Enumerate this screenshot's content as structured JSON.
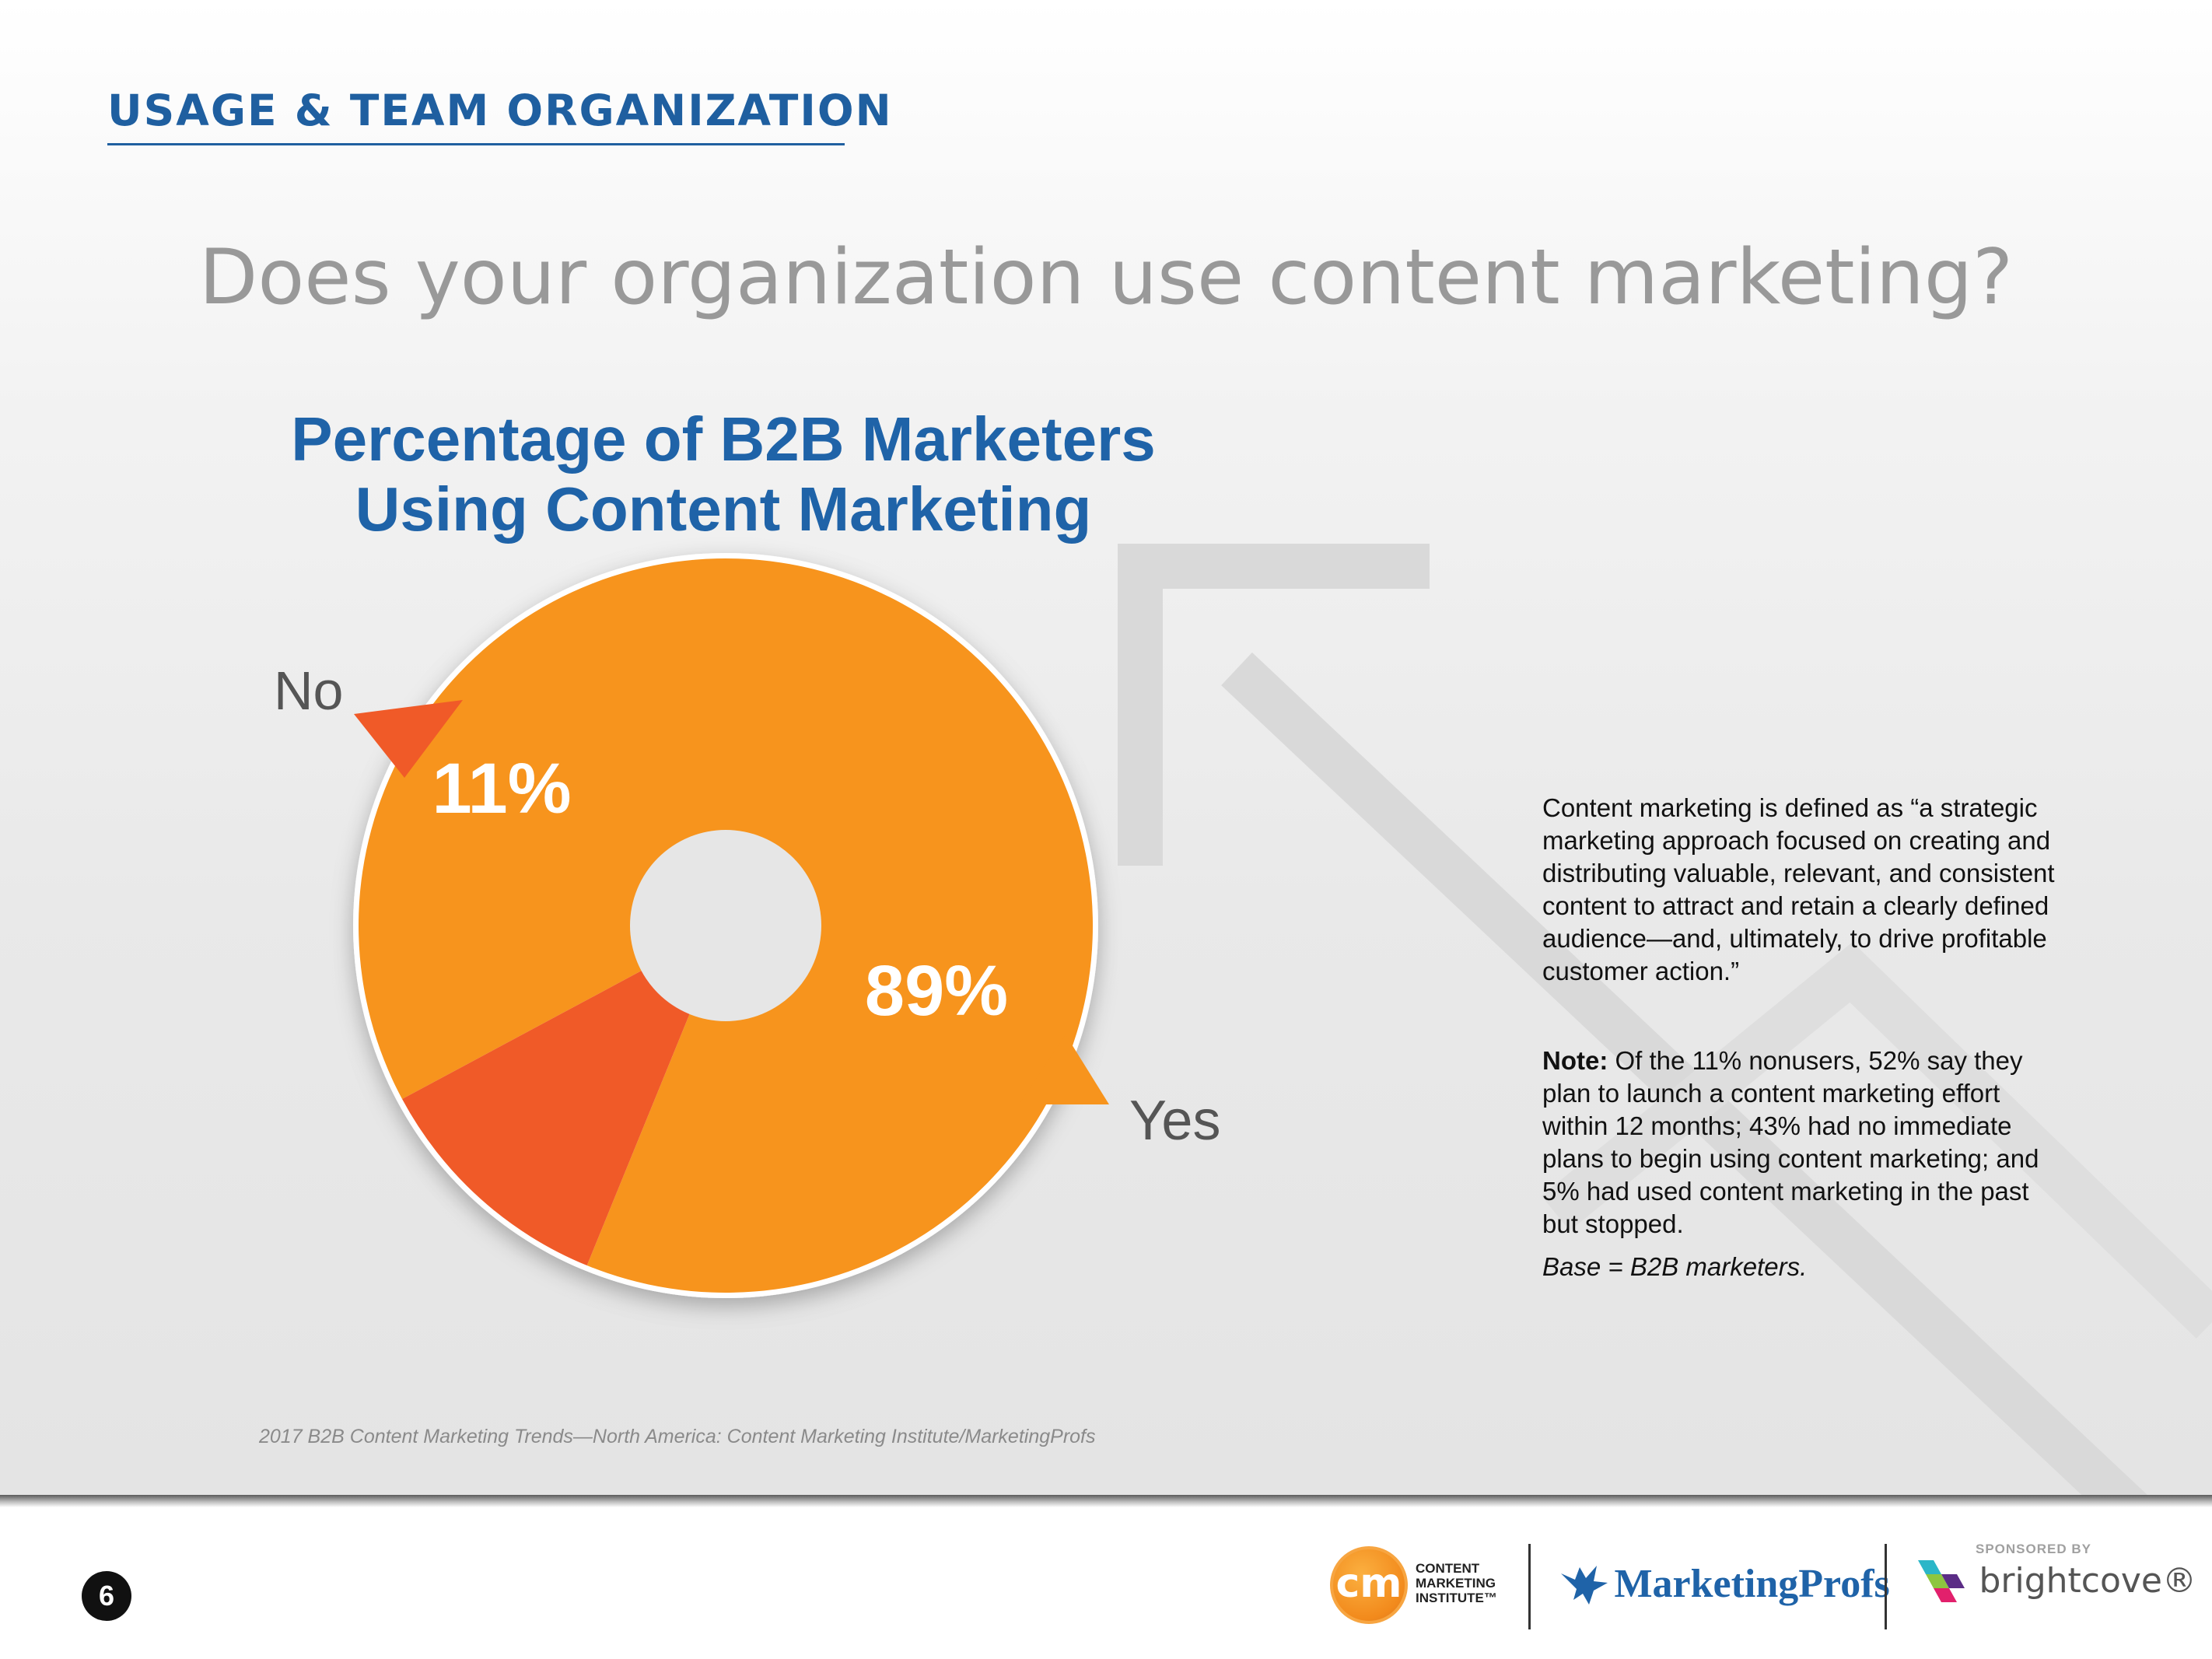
{
  "section_title": "USAGE & TEAM ORGANIZATION",
  "question": "Does your organization use content marketing?",
  "chart_data": {
    "type": "pie",
    "title_lines": [
      "Percentage of B2B Marketers",
      "Using Content Marketing"
    ],
    "categories": [
      "Yes",
      "No"
    ],
    "values": [
      89,
      11
    ],
    "labels": [
      "89%",
      "11%"
    ],
    "colors": {
      "Yes": "#f7941d",
      "No": "#f05a28"
    },
    "style": "donut"
  },
  "definition": "Content marketing is defined as “a strategic marketing approach focused on creating and distributing valuable, relevant, and consistent content to attract and retain a clearly defined audience—and, ultimately, to drive profitable customer action.”",
  "note": {
    "label": "Note:",
    "text": " Of the 11% nonusers, 52% say they plan to launch a content marketing effort within 12 months; 43% had no immediate plans to begin using content marketing; and 5% had used content marketing in the past but stopped."
  },
  "base": "Base = B2B marketers.",
  "source": "2017 B2B Content Marketing Trends—North America: Content Marketing Institute/MarketingProfs",
  "footer": {
    "page_number": "6",
    "cmi_logo_mark": "cm",
    "cmi_logo_lines": [
      "CONTENT",
      "MARKETING",
      "INSTITUTE™"
    ],
    "marketingprofs": "MarketingProfs",
    "sponsored_by": "SPONSORED BY",
    "brightcove": "brightcove®"
  }
}
